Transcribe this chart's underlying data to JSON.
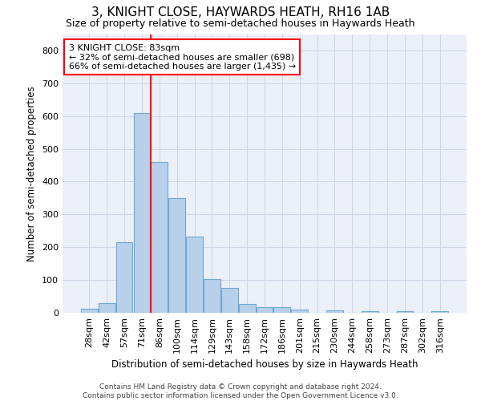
{
  "title": "3, KNIGHT CLOSE, HAYWARDS HEATH, RH16 1AB",
  "subtitle": "Size of property relative to semi-detached houses in Haywards Heath",
  "xlabel": "Distribution of semi-detached houses by size in Haywards Heath",
  "ylabel": "Number of semi-detached properties",
  "footnote_line1": "Contains HM Land Registry data © Crown copyright and database right 2024.",
  "footnote_line2": "Contains public sector information licensed under the Open Government Licence v3.0.",
  "categories": [
    "28sqm",
    "42sqm",
    "57sqm",
    "71sqm",
    "86sqm",
    "100sqm",
    "114sqm",
    "129sqm",
    "143sqm",
    "158sqm",
    "172sqm",
    "186sqm",
    "201sqm",
    "215sqm",
    "230sqm",
    "244sqm",
    "258sqm",
    "273sqm",
    "287sqm",
    "302sqm",
    "316sqm"
  ],
  "values": [
    12,
    30,
    215,
    610,
    460,
    350,
    232,
    103,
    75,
    28,
    17,
    17,
    10,
    0,
    8,
    0,
    5,
    0,
    5,
    0,
    5
  ],
  "bar_color": "#b8d0ea",
  "bar_edge_color": "#6aaad4",
  "annotation_line1": "3 KNIGHT CLOSE: 83sqm",
  "annotation_line2": "← 32% of semi-detached houses are smaller (698)",
  "annotation_line3": "66% of semi-detached houses are larger (1,435) →",
  "annotation_box_facecolor": "white",
  "annotation_box_edgecolor": "red",
  "red_line_index": 4,
  "ylim": [
    0,
    850
  ],
  "yticks": [
    0,
    100,
    200,
    300,
    400,
    500,
    600,
    700,
    800
  ],
  "grid_color": "#ccd6e8",
  "bg_color": "#eaeff8",
  "title_fontsize": 11,
  "subtitle_fontsize": 9,
  "axis_label_fontsize": 8.5,
  "tick_fontsize": 8,
  "annotation_fontsize": 8
}
